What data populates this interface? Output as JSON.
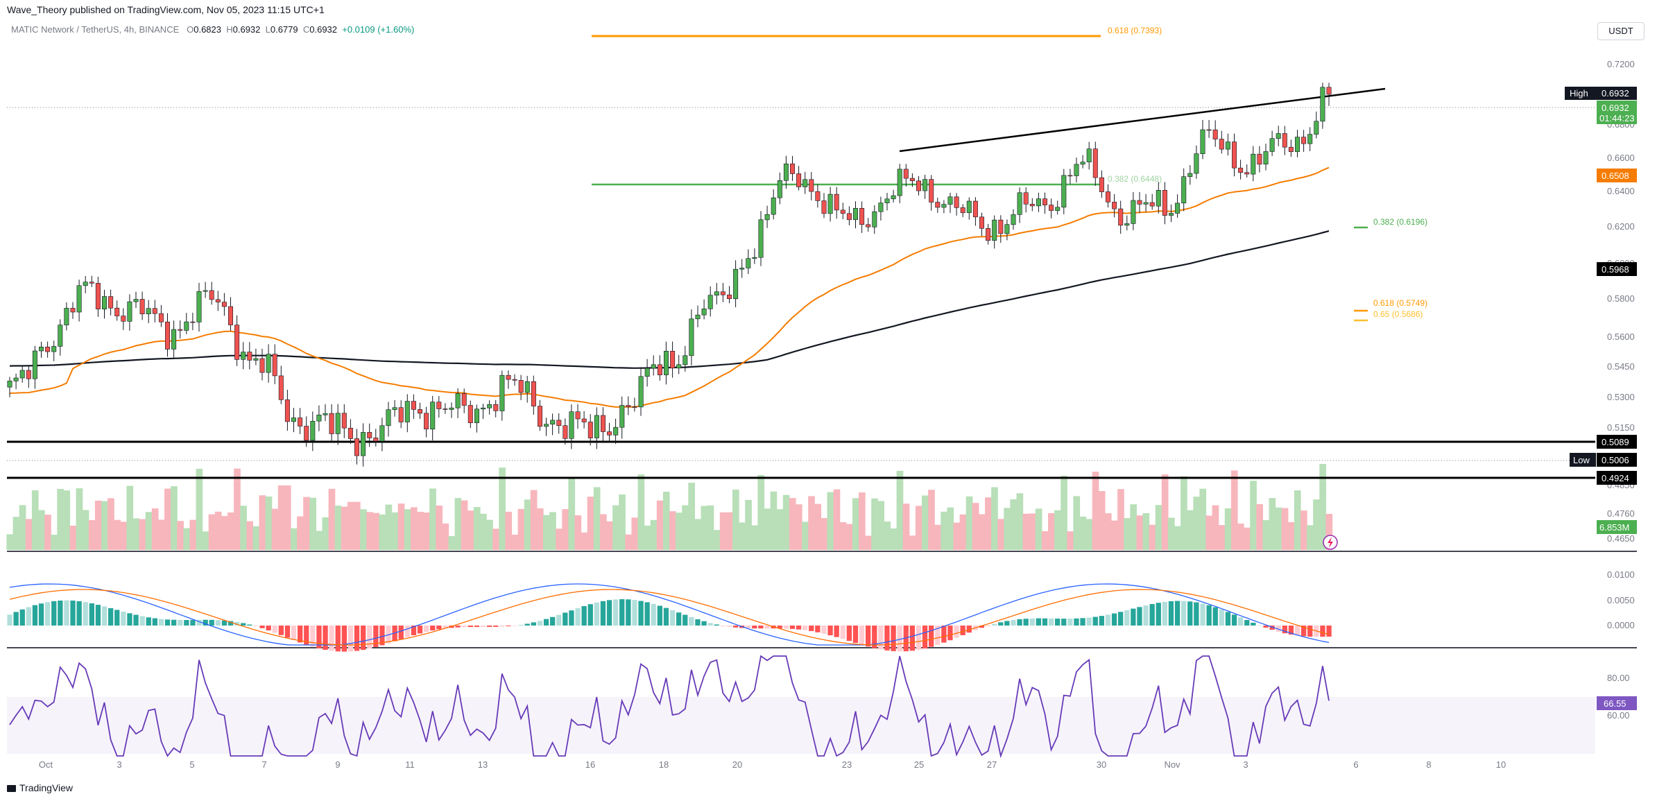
{
  "header": {
    "publisher_line": "Wave_Theory published on TradingView.com, Nov 05, 2023 11:15 UTC+1"
  },
  "symbol_info": {
    "name": "MATIC Network / TetherUS, 4h, BINANCE",
    "o_label": "O",
    "o": "0.6823",
    "h_label": "H",
    "h": "0.6932",
    "l_label": "L",
    "l": "0.6779",
    "c_label": "C",
    "c": "0.6932",
    "change": "+0.0109 (+1.60%)"
  },
  "currency_button": "USDT",
  "footer": {
    "brand": "TradingView"
  },
  "colors": {
    "up": "#26a69a",
    "up_candle": "#4caf50",
    "down": "#ef5350",
    "ema_orange": "#f57c00",
    "ema_black": "#131722",
    "fib_orange": "#ff9800",
    "fib_green": "#4caf50",
    "rsi": "#673ab7",
    "volume_up": "#b8dfb8",
    "volume_down": "#f7b6bc"
  },
  "chart_data": [
    {
      "type": "candlestick",
      "title": "MATIC Network / TetherUS, 4h, BINANCE",
      "ylim": [
        0.465,
        0.73
      ],
      "y_ticks": [
        "0.7200",
        "0.6800",
        "0.6600",
        "0.6400",
        "0.6200",
        "0.6000",
        "0.5800",
        "0.5600",
        "0.5450",
        "0.5300",
        "0.5150",
        "0.4850",
        "0.4760",
        "0.4650"
      ],
      "x_ticks": [
        "Oct",
        "3",
        "5",
        "7",
        "9",
        "11",
        "13",
        "16",
        "18",
        "20",
        "23",
        "25",
        "27",
        "30",
        "Nov",
        "3",
        "6",
        "8",
        "10"
      ],
      "candle_count": 210,
      "key_closes": [
        0.53,
        0.562,
        0.585,
        0.572,
        0.566,
        0.579,
        0.545,
        0.52,
        0.513,
        0.514,
        0.527,
        0.521,
        0.536,
        0.522,
        0.512,
        0.526,
        0.55,
        0.575,
        0.608,
        0.655,
        0.625,
        0.63,
        0.648,
        0.627,
        0.622,
        0.633,
        0.655,
        0.629,
        0.63,
        0.67,
        0.658,
        0.667,
        0.6932
      ],
      "annotations": {
        "high_label": "High",
        "high_value": "0.6932",
        "last_price": "0.6932",
        "countdown": "01:44:23",
        "ema_orange_value": "0.6508",
        "ema_black_value": "0.5968",
        "support_upper": "0.5089",
        "low_label": "Low",
        "low_value": "0.5006",
        "support_lower": "0.4924",
        "volume_value": "6.853M",
        "fib_0618_top": "0.618 (0.7393)",
        "fib_0382_mid": "0.382 (0.6448)",
        "fib_0382": "0.382 (0.6196)",
        "fib_0618": "0.618 (0.5749)",
        "fib_065": "0.65 (0.5686)"
      },
      "lines": {
        "fib_top_price": 0.7393,
        "fib_mid_price": 0.6448,
        "support_upper_price": 0.5089,
        "support_lower_price": 0.4924,
        "wedge_upper": [
          [
            0.652,
            0.72
          ]
        ],
        "ema_orange_end": 0.6508,
        "ema_black_end": 0.5968
      }
    },
    {
      "type": "bar",
      "title": "MACD",
      "y_ticks": [
        "0.0100",
        "0.0050",
        "0.0000"
      ],
      "ylim": [
        -0.003,
        0.011
      ]
    },
    {
      "type": "line",
      "title": "RSI",
      "y_ticks": [
        "80.00",
        "60.00"
      ],
      "ylim": [
        40,
        90
      ],
      "last_value": "66.55",
      "band": [
        30,
        70
      ]
    }
  ]
}
